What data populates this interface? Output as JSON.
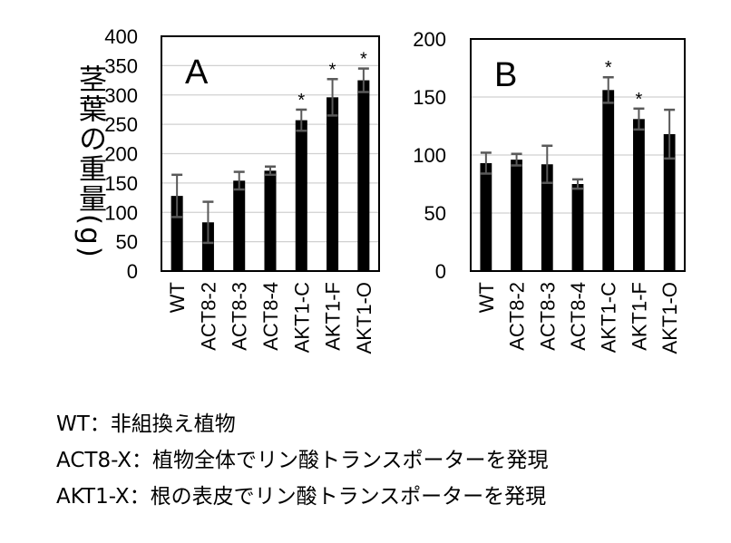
{
  "ylabel": "茎葉の重量(g)",
  "chart_data": [
    {
      "type": "bar",
      "title": "A",
      "categories": [
        "WT",
        "ACT8-2",
        "ACT8-3",
        "ACT8-4",
        "AKT1-C",
        "AKT1-F",
        "AKT1-O"
      ],
      "values": [
        128,
        83,
        154,
        171,
        257,
        296,
        325
      ],
      "errors": [
        36,
        35,
        15,
        7,
        18,
        31,
        20
      ],
      "significant": [
        false,
        false,
        false,
        false,
        true,
        true,
        true
      ],
      "ylabel": "茎葉の重量(g)",
      "ylim": [
        0,
        400
      ],
      "yticks": [
        0,
        50,
        100,
        150,
        200,
        250,
        300,
        350,
        400
      ],
      "grid": true,
      "bar_color": "#000000",
      "error_color": "#595959",
      "grid_color": "#d0d0d0"
    },
    {
      "type": "bar",
      "title": "B",
      "categories": [
        "WT",
        "ACT8-2",
        "ACT8-3",
        "ACT8-4",
        "AKT1-C",
        "AKT1-F",
        "AKT1-O"
      ],
      "values": [
        93,
        96,
        92,
        75,
        156,
        131,
        118
      ],
      "errors": [
        9,
        5,
        16,
        4,
        11,
        9,
        21
      ],
      "significant": [
        false,
        false,
        false,
        false,
        true,
        true,
        false
      ],
      "ylim": [
        0,
        200
      ],
      "yticks": [
        0,
        50,
        100,
        150,
        200
      ],
      "grid": true,
      "bar_color": "#000000",
      "error_color": "#595959",
      "grid_color": "#d0d0d0"
    }
  ],
  "star": "*",
  "notes": [
    "WT：非組換え植物",
    "ACT8-X：植物全体でリン酸トランスポーターを発現",
    "AKT1-X：根の表皮でリン酸トランスポーターを発現"
  ]
}
